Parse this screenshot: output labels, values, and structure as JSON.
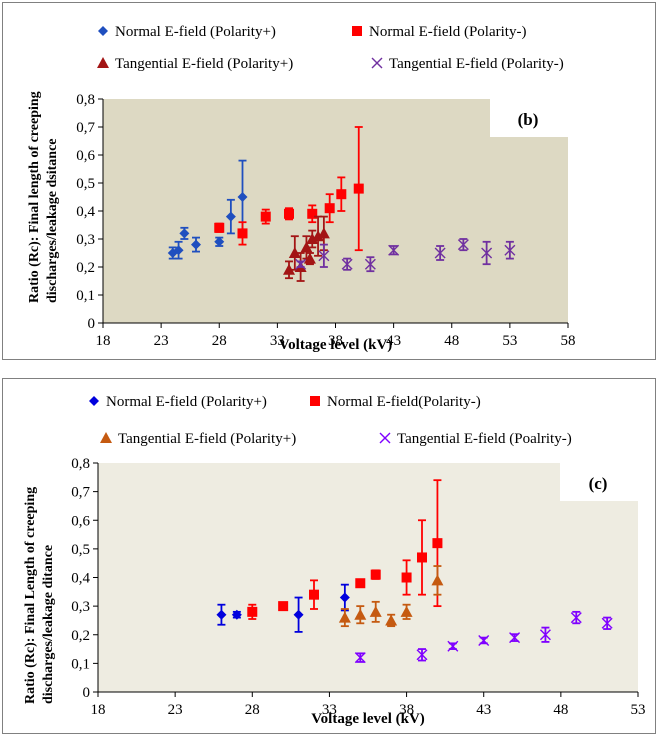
{
  "chart_data": [
    {
      "type": "scatter",
      "panel_label": "(b)",
      "xlabel": "Voltage level (kV)",
      "ylabel_lines": [
        "Ratio (Rc): Final length of creeping",
        "discharges/leakage dsitance"
      ],
      "xlim": [
        18,
        58
      ],
      "ylim": [
        0,
        0.8
      ],
      "xticks": [
        "18",
        "23",
        "28",
        "33",
        "38",
        "43",
        "48",
        "53",
        "58"
      ],
      "yticks": [
        "0",
        "0,1",
        "0,2",
        "0,3",
        "0,4",
        "0,5",
        "0,6",
        "0,7",
        "0,8"
      ],
      "plot_background": "#ddd9c3",
      "legend_position": "top",
      "series": [
        {
          "name": "Normal E-field (Polarity+)",
          "marker": "diamond",
          "color": "#1f4fbf",
          "points": [
            [
              24,
              0.25,
              0.02
            ],
            [
              24.5,
              0.26,
              0.03
            ],
            [
              25,
              0.32,
              0.02
            ],
            [
              26,
              0.28,
              0.025
            ],
            [
              28,
              0.29,
              0.015
            ],
            [
              29,
              0.38,
              0.06
            ],
            [
              30,
              0.45,
              0.13
            ]
          ]
        },
        {
          "name": "Normal E-field (Polarity-)",
          "marker": "square",
          "color": "#ff0000",
          "points": [
            [
              28,
              0.34,
              0.015
            ],
            [
              30,
              0.32,
              0.04
            ],
            [
              32,
              0.38,
              0.025
            ],
            [
              34,
              0.39,
              0.02
            ],
            [
              36,
              0.39,
              0.03
            ],
            [
              37.5,
              0.41,
              0.05
            ],
            [
              38.5,
              0.46,
              0.06
            ],
            [
              40,
              0.48,
              0.22
            ]
          ]
        },
        {
          "name": "Tangential E-field (Polarity+)",
          "marker": "triangle",
          "color": "#a31515",
          "points": [
            [
              34,
              0.19,
              0.03
            ],
            [
              34.5,
              0.25,
              0.06
            ],
            [
              35,
              0.2,
              0.05
            ],
            [
              35.5,
              0.27,
              0.04
            ],
            [
              35.8,
              0.23,
              0.02
            ],
            [
              36,
              0.3,
              0.03
            ],
            [
              36.5,
              0.31,
              0.07
            ],
            [
              37,
              0.32,
              0.06
            ]
          ]
        },
        {
          "name": "Tangential E-field (Polarity-)",
          "marker": "x",
          "color": "#7030a0",
          "points": [
            [
              35,
              0.21,
              0.01
            ],
            [
              37,
              0.24,
              0.04
            ],
            [
              39,
              0.21,
              0.02
            ],
            [
              41,
              0.21,
              0.025
            ],
            [
              43,
              0.26,
              0.015
            ],
            [
              47,
              0.25,
              0.025
            ],
            [
              49,
              0.28,
              0.02
            ],
            [
              51,
              0.25,
              0.04
            ],
            [
              53,
              0.26,
              0.03
            ]
          ]
        }
      ]
    },
    {
      "type": "scatter",
      "panel_label": "(c)",
      "xlabel": "Voltage level (kV)",
      "ylabel_lines": [
        "Ratio (Rc): Final Length of creeping",
        "discharges/leakage ditance"
      ],
      "xlim": [
        18,
        53
      ],
      "ylim": [
        0,
        0.8
      ],
      "xticks": [
        "18",
        "23",
        "28",
        "33",
        "38",
        "43",
        "48",
        "53"
      ],
      "yticks": [
        "0",
        "0,1",
        "0,2",
        "0,3",
        "0,4",
        "0,5",
        "0,6",
        "0,7",
        "0,8"
      ],
      "plot_background": "#eeece1",
      "legend_position": "top",
      "series": [
        {
          "name": "Normal E-field (Polarity+)",
          "marker": "diamond",
          "color": "#0000dd",
          "points": [
            [
              26,
              0.27,
              0.035
            ],
            [
              27,
              0.27,
              0.01
            ],
            [
              31,
              0.27,
              0.06
            ],
            [
              34,
              0.33,
              0.045
            ]
          ]
        },
        {
          "name": "Normal E-field(Polarity-)",
          "marker": "square",
          "color": "#ff0000",
          "points": [
            [
              28,
              0.28,
              0.025
            ],
            [
              30,
              0.3,
              0.01
            ],
            [
              32,
              0.34,
              0.05
            ],
            [
              35,
              0.38,
              0.01
            ],
            [
              36,
              0.41,
              0.015
            ],
            [
              38,
              0.4,
              0.06
            ],
            [
              39,
              0.47,
              0.13
            ],
            [
              40,
              0.52,
              0.22
            ]
          ]
        },
        {
          "name": "Tangential E-field (Polarity+)",
          "marker": "triangle",
          "color": "#c55a11",
          "points": [
            [
              34,
              0.26,
              0.03
            ],
            [
              35,
              0.27,
              0.03
            ],
            [
              36,
              0.28,
              0.035
            ],
            [
              37,
              0.25,
              0.02
            ],
            [
              38,
              0.28,
              0.025
            ],
            [
              40,
              0.39,
              0.05
            ]
          ]
        },
        {
          "name": "Tangential E-field (Poalrity-)",
          "marker": "x",
          "color": "#7f00ff",
          "points": [
            [
              35,
              0.12,
              0.015
            ],
            [
              39,
              0.13,
              0.02
            ],
            [
              41,
              0.16,
              0.01
            ],
            [
              43,
              0.18,
              0.01
            ],
            [
              45,
              0.19,
              0.012
            ],
            [
              47,
              0.2,
              0.025
            ],
            [
              49,
              0.26,
              0.02
            ],
            [
              51,
              0.24,
              0.02
            ]
          ]
        }
      ]
    }
  ]
}
